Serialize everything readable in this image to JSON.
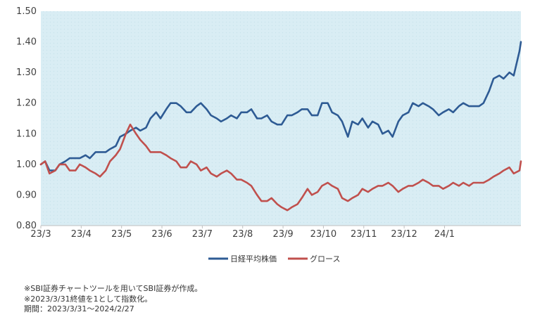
{
  "chart_data": {
    "type": "line",
    "title": "",
    "xlabel": "",
    "ylabel": "",
    "ylim": [
      0.8,
      1.5
    ],
    "yticks": [
      "0.80",
      "0.90",
      "1.00",
      "1.10",
      "1.20",
      "1.30",
      "1.40",
      "1.50"
    ],
    "xlim": [
      "2023-03-31",
      "2024-02-27"
    ],
    "xticks": [
      {
        "label": "23/3",
        "date": "2023-03-31"
      },
      {
        "label": "23/4",
        "date": "2023-04-28"
      },
      {
        "label": "23/5",
        "date": "2023-05-26"
      },
      {
        "label": "23/6",
        "date": "2023-06-23"
      },
      {
        "label": "23/7",
        "date": "2023-07-21"
      },
      {
        "label": "23/8",
        "date": "2023-08-18"
      },
      {
        "label": "23/9",
        "date": "2023-09-15"
      },
      {
        "label": "23/10",
        "date": "2023-10-13"
      },
      {
        "label": "23/11",
        "date": "2023-11-10"
      },
      {
        "label": "23/12",
        "date": "2023-12-08"
      },
      {
        "label": "24/1",
        "date": "2024-01-05"
      }
    ],
    "grid": false,
    "legend_position": "bottom-center",
    "background_color": "#d9edf4",
    "series": [
      {
        "name": "日経平均株価",
        "color": "#2e5b94",
        "points": [
          [
            "2023-03-31",
            1.0
          ],
          [
            "2023-04-03",
            1.01
          ],
          [
            "2023-04-06",
            0.98
          ],
          [
            "2023-04-10",
            0.98
          ],
          [
            "2023-04-13",
            1.0
          ],
          [
            "2023-04-17",
            1.01
          ],
          [
            "2023-04-20",
            1.02
          ],
          [
            "2023-04-24",
            1.02
          ],
          [
            "2023-04-27",
            1.02
          ],
          [
            "2023-05-01",
            1.03
          ],
          [
            "2023-05-04",
            1.02
          ],
          [
            "2023-05-08",
            1.04
          ],
          [
            "2023-05-11",
            1.04
          ],
          [
            "2023-05-15",
            1.04
          ],
          [
            "2023-05-18",
            1.05
          ],
          [
            "2023-05-22",
            1.06
          ],
          [
            "2023-05-25",
            1.09
          ],
          [
            "2023-05-29",
            1.1
          ],
          [
            "2023-06-01",
            1.11
          ],
          [
            "2023-06-05",
            1.12
          ],
          [
            "2023-06-08",
            1.11
          ],
          [
            "2023-06-12",
            1.12
          ],
          [
            "2023-06-15",
            1.15
          ],
          [
            "2023-06-19",
            1.17
          ],
          [
            "2023-06-22",
            1.15
          ],
          [
            "2023-06-26",
            1.18
          ],
          [
            "2023-06-29",
            1.2
          ],
          [
            "2023-07-03",
            1.2
          ],
          [
            "2023-07-06",
            1.19
          ],
          [
            "2023-07-10",
            1.17
          ],
          [
            "2023-07-13",
            1.17
          ],
          [
            "2023-07-17",
            1.19
          ],
          [
            "2023-07-20",
            1.2
          ],
          [
            "2023-07-24",
            1.18
          ],
          [
            "2023-07-27",
            1.16
          ],
          [
            "2023-07-31",
            1.15
          ],
          [
            "2023-08-03",
            1.14
          ],
          [
            "2023-08-07",
            1.15
          ],
          [
            "2023-08-10",
            1.16
          ],
          [
            "2023-08-14",
            1.15
          ],
          [
            "2023-08-17",
            1.17
          ],
          [
            "2023-08-21",
            1.17
          ],
          [
            "2023-08-24",
            1.18
          ],
          [
            "2023-08-28",
            1.15
          ],
          [
            "2023-08-31",
            1.15
          ],
          [
            "2023-09-04",
            1.16
          ],
          [
            "2023-09-07",
            1.14
          ],
          [
            "2023-09-11",
            1.13
          ],
          [
            "2023-09-14",
            1.13
          ],
          [
            "2023-09-18",
            1.16
          ],
          [
            "2023-09-21",
            1.16
          ],
          [
            "2023-09-25",
            1.17
          ],
          [
            "2023-09-28",
            1.18
          ],
          [
            "2023-10-02",
            1.18
          ],
          [
            "2023-10-05",
            1.16
          ],
          [
            "2023-10-09",
            1.16
          ],
          [
            "2023-10-12",
            1.2
          ],
          [
            "2023-10-16",
            1.2
          ],
          [
            "2023-10-19",
            1.17
          ],
          [
            "2023-10-23",
            1.16
          ],
          [
            "2023-10-26",
            1.14
          ],
          [
            "2023-10-30",
            1.09
          ],
          [
            "2023-11-02",
            1.14
          ],
          [
            "2023-11-06",
            1.13
          ],
          [
            "2023-11-09",
            1.15
          ],
          [
            "2023-11-13",
            1.12
          ],
          [
            "2023-11-16",
            1.14
          ],
          [
            "2023-11-20",
            1.13
          ],
          [
            "2023-11-23",
            1.1
          ],
          [
            "2023-11-27",
            1.11
          ],
          [
            "2023-11-30",
            1.09
          ],
          [
            "2023-12-04",
            1.14
          ],
          [
            "2023-12-07",
            1.16
          ],
          [
            "2023-12-11",
            1.17
          ],
          [
            "2023-12-14",
            1.2
          ],
          [
            "2023-12-18",
            1.19
          ],
          [
            "2023-12-21",
            1.2
          ],
          [
            "2023-12-25",
            1.19
          ],
          [
            "2023-12-28",
            1.18
          ],
          [
            "2024-01-01",
            1.16
          ],
          [
            "2024-01-04",
            1.17
          ],
          [
            "2024-01-08",
            1.18
          ],
          [
            "2024-01-11",
            1.17
          ],
          [
            "2024-01-15",
            1.19
          ],
          [
            "2024-01-18",
            1.2
          ],
          [
            "2024-01-22",
            1.19
          ],
          [
            "2024-01-25",
            1.19
          ],
          [
            "2024-01-29",
            1.19
          ],
          [
            "2024-02-01",
            1.2
          ],
          [
            "2024-02-05",
            1.24
          ],
          [
            "2024-02-08",
            1.28
          ],
          [
            "2024-02-12",
            1.29
          ],
          [
            "2024-02-15",
            1.28
          ],
          [
            "2024-02-19",
            1.3
          ],
          [
            "2024-02-22",
            1.29
          ],
          [
            "2024-02-26",
            1.37
          ],
          [
            "2024-02-27",
            1.4
          ]
        ]
      },
      {
        "name": "グロース",
        "color": "#c0504d",
        "points": [
          [
            "2023-03-31",
            1.0
          ],
          [
            "2023-04-03",
            1.01
          ],
          [
            "2023-04-06",
            0.97
          ],
          [
            "2023-04-10",
            0.98
          ],
          [
            "2023-04-13",
            1.0
          ],
          [
            "2023-04-17",
            1.0
          ],
          [
            "2023-04-20",
            0.98
          ],
          [
            "2023-04-24",
            0.98
          ],
          [
            "2023-04-27",
            1.0
          ],
          [
            "2023-05-01",
            0.99
          ],
          [
            "2023-05-04",
            0.98
          ],
          [
            "2023-05-08",
            0.97
          ],
          [
            "2023-05-11",
            0.96
          ],
          [
            "2023-05-15",
            0.98
          ],
          [
            "2023-05-18",
            1.01
          ],
          [
            "2023-05-22",
            1.03
          ],
          [
            "2023-05-25",
            1.05
          ],
          [
            "2023-05-29",
            1.1
          ],
          [
            "2023-06-01",
            1.13
          ],
          [
            "2023-06-05",
            1.1
          ],
          [
            "2023-06-08",
            1.08
          ],
          [
            "2023-06-12",
            1.06
          ],
          [
            "2023-06-15",
            1.04
          ],
          [
            "2023-06-19",
            1.04
          ],
          [
            "2023-06-22",
            1.04
          ],
          [
            "2023-06-26",
            1.03
          ],
          [
            "2023-06-29",
            1.02
          ],
          [
            "2023-07-03",
            1.01
          ],
          [
            "2023-07-06",
            0.99
          ],
          [
            "2023-07-10",
            0.99
          ],
          [
            "2023-07-13",
            1.01
          ],
          [
            "2023-07-17",
            1.0
          ],
          [
            "2023-07-20",
            0.98
          ],
          [
            "2023-07-24",
            0.99
          ],
          [
            "2023-07-27",
            0.97
          ],
          [
            "2023-07-31",
            0.96
          ],
          [
            "2023-08-03",
            0.97
          ],
          [
            "2023-08-07",
            0.98
          ],
          [
            "2023-08-10",
            0.97
          ],
          [
            "2023-08-14",
            0.95
          ],
          [
            "2023-08-17",
            0.95
          ],
          [
            "2023-08-21",
            0.94
          ],
          [
            "2023-08-24",
            0.93
          ],
          [
            "2023-08-28",
            0.9
          ],
          [
            "2023-08-31",
            0.88
          ],
          [
            "2023-09-04",
            0.88
          ],
          [
            "2023-09-07",
            0.89
          ],
          [
            "2023-09-11",
            0.87
          ],
          [
            "2023-09-14",
            0.86
          ],
          [
            "2023-09-18",
            0.85
          ],
          [
            "2023-09-21",
            0.86
          ],
          [
            "2023-09-25",
            0.87
          ],
          [
            "2023-09-28",
            0.89
          ],
          [
            "2023-10-02",
            0.92
          ],
          [
            "2023-10-05",
            0.9
          ],
          [
            "2023-10-09",
            0.91
          ],
          [
            "2023-10-12",
            0.93
          ],
          [
            "2023-10-16",
            0.94
          ],
          [
            "2023-10-19",
            0.93
          ],
          [
            "2023-10-23",
            0.92
          ],
          [
            "2023-10-26",
            0.89
          ],
          [
            "2023-10-30",
            0.88
          ],
          [
            "2023-11-02",
            0.89
          ],
          [
            "2023-11-06",
            0.9
          ],
          [
            "2023-11-09",
            0.92
          ],
          [
            "2023-11-13",
            0.91
          ],
          [
            "2023-11-16",
            0.92
          ],
          [
            "2023-11-20",
            0.93
          ],
          [
            "2023-11-23",
            0.93
          ],
          [
            "2023-11-27",
            0.94
          ],
          [
            "2023-11-30",
            0.93
          ],
          [
            "2023-12-04",
            0.91
          ],
          [
            "2023-12-07",
            0.92
          ],
          [
            "2023-12-11",
            0.93
          ],
          [
            "2023-12-14",
            0.93
          ],
          [
            "2023-12-18",
            0.94
          ],
          [
            "2023-12-21",
            0.95
          ],
          [
            "2023-12-25",
            0.94
          ],
          [
            "2023-12-28",
            0.93
          ],
          [
            "2024-01-01",
            0.93
          ],
          [
            "2024-01-04",
            0.92
          ],
          [
            "2024-01-08",
            0.93
          ],
          [
            "2024-01-11",
            0.94
          ],
          [
            "2024-01-15",
            0.93
          ],
          [
            "2024-01-18",
            0.94
          ],
          [
            "2024-01-22",
            0.93
          ],
          [
            "2024-01-25",
            0.94
          ],
          [
            "2024-01-29",
            0.94
          ],
          [
            "2024-02-01",
            0.94
          ],
          [
            "2024-02-05",
            0.95
          ],
          [
            "2024-02-08",
            0.96
          ],
          [
            "2024-02-12",
            0.97
          ],
          [
            "2024-02-15",
            0.98
          ],
          [
            "2024-02-19",
            0.99
          ],
          [
            "2024-02-22",
            0.97
          ],
          [
            "2024-02-26",
            0.98
          ],
          [
            "2024-02-27",
            1.01
          ]
        ]
      }
    ]
  },
  "notes": {
    "line1": "※SBI証券チャートツールを用いてSBI証券が作成。",
    "line2": "※2023/3/31終値を1として指数化。",
    "line3": "期間：2023/3/31～2024/2/27"
  }
}
